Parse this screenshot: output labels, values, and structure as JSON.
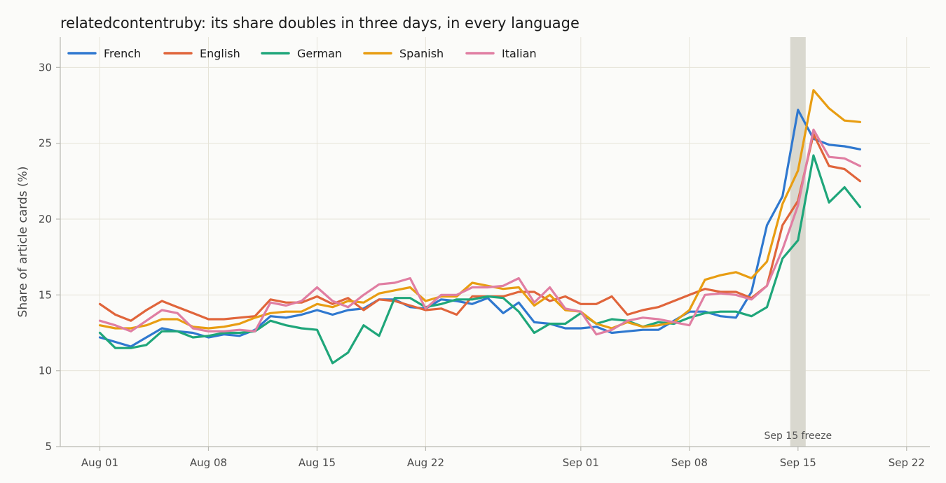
{
  "chart_data": {
    "type": "line",
    "title": "relatedcontentruby: its share doubles in three days, in every language",
    "xlabel": "",
    "ylabel": "Share of article cards (%)",
    "ylim": [
      5,
      32
    ],
    "y_ticks": [
      5,
      10,
      15,
      20,
      25,
      30
    ],
    "x_start": "2023-08-01",
    "x_ticks": [
      {
        "date": "2023-08-01",
        "label": "Aug 01"
      },
      {
        "date": "2023-08-08",
        "label": "Aug 08"
      },
      {
        "date": "2023-08-15",
        "label": "Aug 15"
      },
      {
        "date": "2023-08-22",
        "label": "Aug 22"
      },
      {
        "date": "2023-09-01",
        "label": "Sep 01"
      },
      {
        "date": "2023-09-08",
        "label": "Sep 08"
      },
      {
        "date": "2023-09-15",
        "label": "Sep 15"
      },
      {
        "date": "2023-09-22",
        "label": "Sep 22"
      }
    ],
    "grid": true,
    "legend_position": "top-left",
    "annotation": {
      "label": "Sep 15 freeze",
      "date": "2023-09-15"
    },
    "series": [
      {
        "name": "French",
        "color": "#2f78cf",
        "values": [
          12.2,
          11.9,
          11.6,
          12.2,
          12.8,
          12.6,
          12.5,
          12.2,
          12.4,
          12.3,
          12.7,
          13.6,
          13.5,
          13.7,
          14.0,
          13.7,
          14.0,
          14.1,
          14.7,
          14.7,
          14.2,
          14.1,
          14.7,
          14.6,
          14.4,
          14.8,
          13.8,
          14.5,
          13.2,
          13.1,
          12.8,
          12.8,
          12.9,
          12.5,
          12.6,
          12.7,
          12.7,
          13.3,
          13.9,
          13.9,
          13.6,
          13.5,
          15.2,
          19.6,
          21.5,
          27.2,
          25.3,
          24.9,
          24.8,
          24.6
        ]
      },
      {
        "name": "English",
        "color": "#e0653b",
        "values": [
          14.4,
          13.7,
          13.3,
          14.0,
          14.6,
          14.2,
          13.8,
          13.4,
          13.4,
          13.5,
          13.6,
          14.7,
          14.5,
          14.5,
          14.9,
          14.4,
          14.8,
          14.0,
          14.7,
          14.6,
          14.3,
          14.0,
          14.1,
          13.7,
          14.9,
          14.9,
          14.9,
          15.2,
          15.2,
          14.6,
          14.9,
          14.4,
          14.4,
          14.9,
          13.7,
          14.0,
          14.2,
          14.6,
          15.0,
          15.4,
          15.2,
          15.2,
          14.8,
          15.6,
          19.6,
          21.2,
          25.6,
          23.5,
          23.3,
          22.5
        ]
      },
      {
        "name": "German",
        "color": "#1fa67a",
        "values": [
          12.5,
          11.5,
          11.5,
          11.7,
          12.6,
          12.6,
          12.2,
          12.3,
          12.5,
          12.5,
          12.6,
          13.3,
          13.0,
          12.8,
          12.7,
          10.5,
          11.2,
          13.0,
          12.3,
          14.8,
          14.8,
          14.2,
          14.4,
          14.7,
          14.7,
          14.9,
          14.8,
          13.9,
          12.5,
          13.1,
          13.1,
          13.8,
          13.1,
          13.4,
          13.3,
          12.9,
          13.2,
          13.1,
          13.5,
          13.8,
          13.9,
          13.9,
          13.6,
          14.2,
          17.4,
          18.6,
          24.2,
          21.1,
          22.1,
          20.8
        ]
      },
      {
        "name": "Spanish",
        "color": "#e89d12",
        "values": [
          13.0,
          12.8,
          12.8,
          13.0,
          13.4,
          13.4,
          12.9,
          12.8,
          12.9,
          13.1,
          13.5,
          13.8,
          13.9,
          13.9,
          14.4,
          14.2,
          14.6,
          14.5,
          15.1,
          15.3,
          15.5,
          14.6,
          14.9,
          14.9,
          15.8,
          15.6,
          15.4,
          15.5,
          14.3,
          15.0,
          14.0,
          13.9,
          13.1,
          12.8,
          13.2,
          12.9,
          13.0,
          13.2,
          14.0,
          16.0,
          16.3,
          16.5,
          16.1,
          17.2,
          21.0,
          23.2,
          28.5,
          27.3,
          26.5,
          26.4
        ]
      },
      {
        "name": "Italian",
        "color": "#e07ea2",
        "values": [
          13.3,
          13.0,
          12.6,
          13.3,
          14.0,
          13.8,
          12.8,
          12.6,
          12.6,
          12.7,
          12.6,
          14.5,
          14.3,
          14.6,
          15.5,
          14.6,
          14.2,
          15.0,
          15.7,
          15.8,
          16.1,
          14.1,
          15.0,
          15.0,
          15.5,
          15.5,
          15.6,
          16.1,
          14.5,
          15.5,
          14.1,
          13.9,
          12.4,
          12.7,
          13.3,
          13.5,
          13.4,
          13.2,
          13.0,
          15.0,
          15.1,
          15.0,
          14.7,
          15.6,
          18.0,
          20.9,
          25.9,
          24.1,
          24.0,
          23.5
        ]
      }
    ]
  }
}
